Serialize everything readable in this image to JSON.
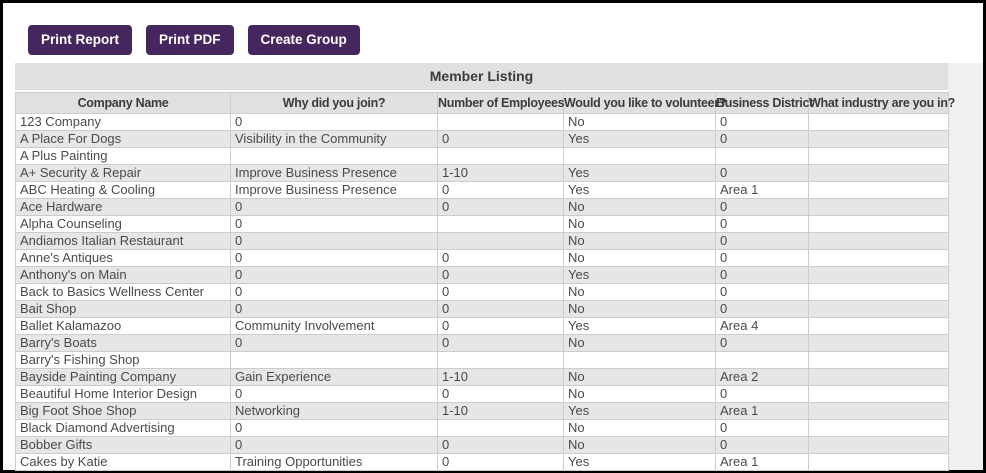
{
  "toolbar": {
    "buttons": [
      {
        "label": "Print Report"
      },
      {
        "label": "Print PDF"
      },
      {
        "label": "Create Group"
      }
    ]
  },
  "table": {
    "caption": "Member Listing",
    "columns": [
      "Company Name",
      "Why did you join?",
      "Number of Employees",
      "Would you like to volunteer?",
      "Business District",
      "What industry are you in?"
    ],
    "rows": [
      [
        "123 Company",
        "0",
        "",
        "No",
        "0",
        ""
      ],
      [
        "A Place For Dogs",
        "Visibility in the Community",
        "0",
        "Yes",
        "0",
        ""
      ],
      [
        "A Plus Painting",
        "",
        "",
        "",
        "",
        ""
      ],
      [
        "A+ Security & Repair",
        "Improve Business Presence",
        "1-10",
        "Yes",
        "0",
        ""
      ],
      [
        "ABC Heating & Cooling",
        "Improve Business Presence",
        "0",
        "Yes",
        "Area 1",
        ""
      ],
      [
        "Ace Hardware",
        "0",
        "0",
        "No",
        "0",
        ""
      ],
      [
        "Alpha Counseling",
        "0",
        "",
        "No",
        "0",
        ""
      ],
      [
        "Andiamos Italian Restaurant",
        "0",
        "",
        "No",
        "0",
        ""
      ],
      [
        "Anne's Antiques",
        "0",
        "0",
        "No",
        "0",
        ""
      ],
      [
        "Anthony's on Main",
        "0",
        "0",
        "Yes",
        "0",
        ""
      ],
      [
        "Back to Basics Wellness Center",
        "0",
        "0",
        "No",
        "0",
        ""
      ],
      [
        "Bait Shop",
        "0",
        "0",
        "No",
        "0",
        ""
      ],
      [
        "Ballet Kalamazoo",
        "Community Involvement",
        "0",
        "Yes",
        "Area 4",
        ""
      ],
      [
        "Barry's Boats",
        "0",
        "0",
        "No",
        "0",
        ""
      ],
      [
        "Barry's Fishing Shop",
        "",
        "",
        "",
        "",
        ""
      ],
      [
        "Bayside Painting Company",
        "Gain Experience",
        "1-10",
        "No",
        "Area 2",
        ""
      ],
      [
        "Beautiful Home Interior Design",
        "0",
        "0",
        "No",
        "0",
        ""
      ],
      [
        "Big Foot Shoe Shop",
        "Networking",
        "1-10",
        "Yes",
        "Area 1",
        ""
      ],
      [
        "Black Diamond Advertising",
        "0",
        "",
        "No",
        "0",
        ""
      ],
      [
        "Bobber Gifts",
        "0",
        "0",
        "No",
        "0",
        ""
      ],
      [
        "Cakes by Katie",
        "Training Opportunities",
        "0",
        "Yes",
        "Area 1",
        ""
      ]
    ]
  },
  "colors": {
    "button_bg": "#46265f",
    "button_text": "#ffffff",
    "header_bg": "#e0e0e0",
    "header_text": "#3b3b3b",
    "stripe_bg": "#e6e6e6",
    "border": "#cccccc",
    "text": "#4a4a4a",
    "gutter_bg": "#f2f0ee",
    "frame": "#000000"
  }
}
